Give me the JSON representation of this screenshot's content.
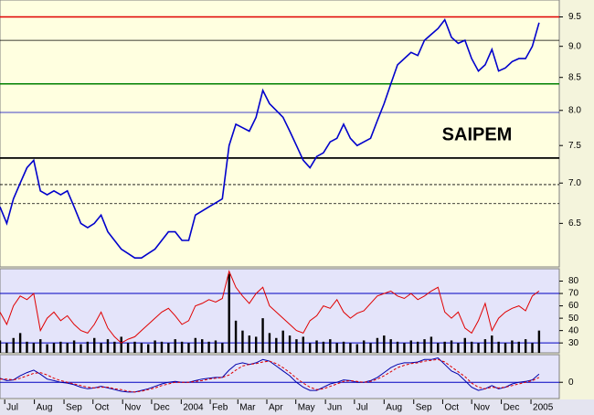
{
  "chart_data": [
    {
      "type": "line",
      "title": "SAIPEM",
      "log_scale": true,
      "xlim": [
        0,
        83
      ],
      "xticks": [
        {
          "value": 0.7,
          "label": "Jul"
        },
        {
          "value": 5.1,
          "label": "Aug"
        },
        {
          "value": 9.5,
          "label": "Sep"
        },
        {
          "value": 13.8,
          "label": "Oct"
        },
        {
          "value": 18.2,
          "label": "Nov"
        },
        {
          "value": 22.5,
          "label": "Dec"
        },
        {
          "value": 26.9,
          "label": "2004"
        },
        {
          "value": 31.2,
          "label": "Feb"
        },
        {
          "value": 35.3,
          "label": "Mar"
        },
        {
          "value": 39.6,
          "label": "Apr"
        },
        {
          "value": 43.9,
          "label": "May"
        },
        {
          "value": 48.3,
          "label": "Jun"
        },
        {
          "value": 52.6,
          "label": "Jul"
        },
        {
          "value": 57,
          "label": "Aug"
        },
        {
          "value": 61.4,
          "label": "Sep"
        },
        {
          "value": 65.7,
          "label": "Oct"
        },
        {
          "value": 70,
          "label": "Nov"
        },
        {
          "value": 74.4,
          "label": "Dec"
        },
        {
          "value": 78.8,
          "label": "2005"
        }
      ],
      "ylim": [
        6.0,
        9.8
      ],
      "yticks": [
        {
          "value": 6.5,
          "label": "6.5"
        },
        {
          "value": 7,
          "label": "7.0"
        },
        {
          "value": 7.5,
          "label": "7.5"
        },
        {
          "value": 8,
          "label": "8.0"
        },
        {
          "value": 8.5,
          "label": "8.5"
        },
        {
          "value": 9,
          "label": "9.0"
        },
        9.5
      ],
      "levels": [
        {
          "value": 9.5,
          "color": "#e00000",
          "width": 1.5,
          "dash": false
        },
        {
          "value": 9.1,
          "color": "#000000",
          "width": 0.8,
          "dash": false
        },
        {
          "value": 8.4,
          "color": "#008000",
          "width": 1.5,
          "dash": false
        },
        {
          "value": 7.97,
          "color": "#0000c0",
          "width": 0.8,
          "dash": false
        },
        {
          "value": 7.33,
          "color": "#000000",
          "width": 1.8,
          "dash": false
        },
        {
          "value": 6.98,
          "color": "#000000",
          "width": 0.8,
          "dash": true
        },
        {
          "value": 6.74,
          "color": "#000000",
          "width": 0.8,
          "dash": true
        }
      ],
      "series": [
        {
          "color": "#0000cc",
          "values": [
            6.7,
            6.5,
            6.8,
            7.0,
            7.2,
            7.3,
            6.9,
            6.85,
            6.9,
            6.85,
            6.9,
            6.7,
            6.5,
            6.45,
            6.5,
            6.6,
            6.4,
            6.3,
            6.2,
            6.15,
            6.1,
            6.1,
            6.15,
            6.2,
            6.3,
            6.4,
            6.4,
            6.3,
            6.3,
            6.6,
            6.65,
            6.7,
            6.75,
            6.8,
            7.5,
            7.8,
            7.75,
            7.7,
            7.9,
            8.3,
            8.1,
            8.0,
            7.9,
            7.7,
            7.5,
            7.3,
            7.2,
            7.35,
            7.4,
            7.55,
            7.6,
            7.8,
            7.6,
            7.5,
            7.55,
            7.6,
            7.85,
            8.1,
            8.4,
            8.7,
            8.8,
            8.9,
            8.85,
            9.1,
            9.2,
            9.3,
            9.45,
            9.15,
            9.05,
            9.1,
            8.8,
            8.6,
            8.7,
            8.95,
            8.6,
            8.65,
            8.75,
            8.8,
            8.8,
            9.0,
            9.4
          ]
        }
      ]
    },
    {
      "type": "line",
      "xlim": [
        0,
        83
      ],
      "ylim": [
        22,
        90
      ],
      "yticks": [
        30,
        40,
        50,
        60,
        70,
        80
      ],
      "levels": [
        {
          "value": 70,
          "color": "#0000c0",
          "width": 1,
          "dash": false
        },
        {
          "value": 30,
          "color": "#0000c0",
          "width": 1,
          "dash": false
        }
      ],
      "bars": {
        "color": "#000000",
        "values": [
          32,
          30,
          34,
          38,
          31,
          30,
          33,
          29,
          30,
          31,
          30,
          32,
          29,
          31,
          34,
          30,
          33,
          31,
          35,
          30,
          31,
          30,
          29,
          32,
          31,
          30,
          33,
          31,
          30,
          34,
          33,
          31,
          32,
          30,
          86,
          48,
          40,
          36,
          35,
          50,
          38,
          34,
          40,
          36,
          33,
          35,
          30,
          32,
          31,
          33,
          30,
          31,
          30,
          29,
          32,
          30,
          34,
          36,
          33,
          31,
          30,
          32,
          31,
          33,
          35,
          30,
          31,
          32,
          30,
          34,
          31,
          30,
          33,
          36,
          31,
          30,
          32,
          31,
          33,
          30,
          40
        ]
      },
      "series": [
        {
          "color": "#e00000",
          "values": [
            55,
            45,
            60,
            68,
            65,
            70,
            40,
            50,
            55,
            48,
            52,
            45,
            40,
            38,
            45,
            55,
            42,
            35,
            30,
            33,
            35,
            40,
            45,
            50,
            55,
            58,
            52,
            45,
            48,
            60,
            62,
            65,
            63,
            66,
            88,
            75,
            68,
            62,
            70,
            75,
            60,
            55,
            50,
            45,
            40,
            38,
            48,
            52,
            60,
            58,
            65,
            55,
            50,
            54,
            56,
            62,
            68,
            70,
            72,
            68,
            66,
            70,
            65,
            68,
            72,
            75,
            55,
            50,
            55,
            42,
            38,
            48,
            62,
            40,
            50,
            55,
            58,
            60,
            56,
            68,
            72
          ]
        }
      ]
    },
    {
      "type": "line",
      "xlim": [
        0,
        83
      ],
      "ylim": [
        -0.2,
        0.34
      ],
      "yticks": [
        0
      ],
      "levels": [
        {
          "value": 0,
          "color": "#0000c0",
          "width": 1,
          "dash": false
        }
      ],
      "series": [
        {
          "color": "#0000aa",
          "dash": false,
          "values": [
            0.05,
            0.02,
            0.03,
            0.08,
            0.12,
            0.15,
            0.1,
            0.04,
            0.02,
            0.0,
            -0.01,
            -0.03,
            -0.06,
            -0.08,
            -0.07,
            -0.05,
            -0.07,
            -0.09,
            -0.11,
            -0.12,
            -0.12,
            -0.1,
            -0.08,
            -0.05,
            -0.02,
            0.0,
            0.01,
            0.0,
            0.0,
            0.02,
            0.04,
            0.05,
            0.06,
            0.06,
            0.15,
            0.22,
            0.24,
            0.22,
            0.24,
            0.28,
            0.26,
            0.2,
            0.14,
            0.08,
            0.0,
            -0.06,
            -0.1,
            -0.1,
            -0.06,
            -0.02,
            0.0,
            0.03,
            0.02,
            0.0,
            0.0,
            0.02,
            0.06,
            0.12,
            0.18,
            0.22,
            0.24,
            0.24,
            0.25,
            0.28,
            0.28,
            0.3,
            0.22,
            0.14,
            0.1,
            0.02,
            -0.06,
            -0.1,
            -0.08,
            -0.04,
            -0.08,
            -0.06,
            -0.02,
            0.0,
            0.01,
            0.03,
            0.1
          ]
        },
        {
          "color": "#e00000",
          "dash": true,
          "values": [
            0.04,
            0.04,
            0.03,
            0.05,
            0.08,
            0.11,
            0.12,
            0.09,
            0.05,
            0.02,
            0.0,
            -0.02,
            -0.04,
            -0.06,
            -0.07,
            -0.06,
            -0.06,
            -0.08,
            -0.09,
            -0.11,
            -0.12,
            -0.11,
            -0.09,
            -0.07,
            -0.04,
            -0.02,
            0.0,
            0.0,
            0.0,
            0.01,
            0.02,
            0.04,
            0.05,
            0.06,
            0.09,
            0.15,
            0.2,
            0.22,
            0.23,
            0.25,
            0.26,
            0.23,
            0.18,
            0.12,
            0.05,
            -0.01,
            -0.06,
            -0.09,
            -0.08,
            -0.05,
            -0.02,
            0.01,
            0.02,
            0.01,
            0.0,
            0.01,
            0.04,
            0.08,
            0.13,
            0.18,
            0.21,
            0.23,
            0.24,
            0.26,
            0.27,
            0.28,
            0.25,
            0.19,
            0.13,
            0.07,
            -0.01,
            -0.06,
            -0.08,
            -0.06,
            -0.07,
            -0.06,
            -0.04,
            -0.02,
            0.0,
            0.02,
            0.06
          ]
        }
      ]
    }
  ]
}
